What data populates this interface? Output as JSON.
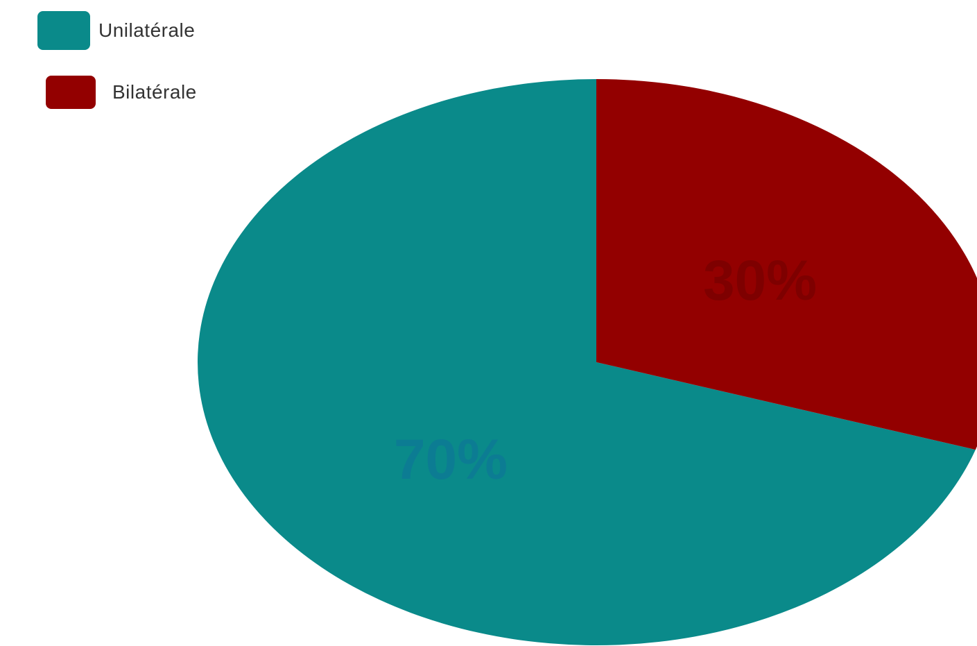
{
  "chart_data": {
    "type": "pie",
    "categories": [
      "Unilatérale",
      "Bilatérale"
    ],
    "values": [
      70,
      30
    ],
    "data_labels": [
      "70%",
      "30%"
    ],
    "colors": [
      "#0a8a8a",
      "#930000"
    ],
    "label_colors": [
      "#0c7c93",
      "#7e0000"
    ],
    "title": "",
    "legend_position": "top-left"
  }
}
